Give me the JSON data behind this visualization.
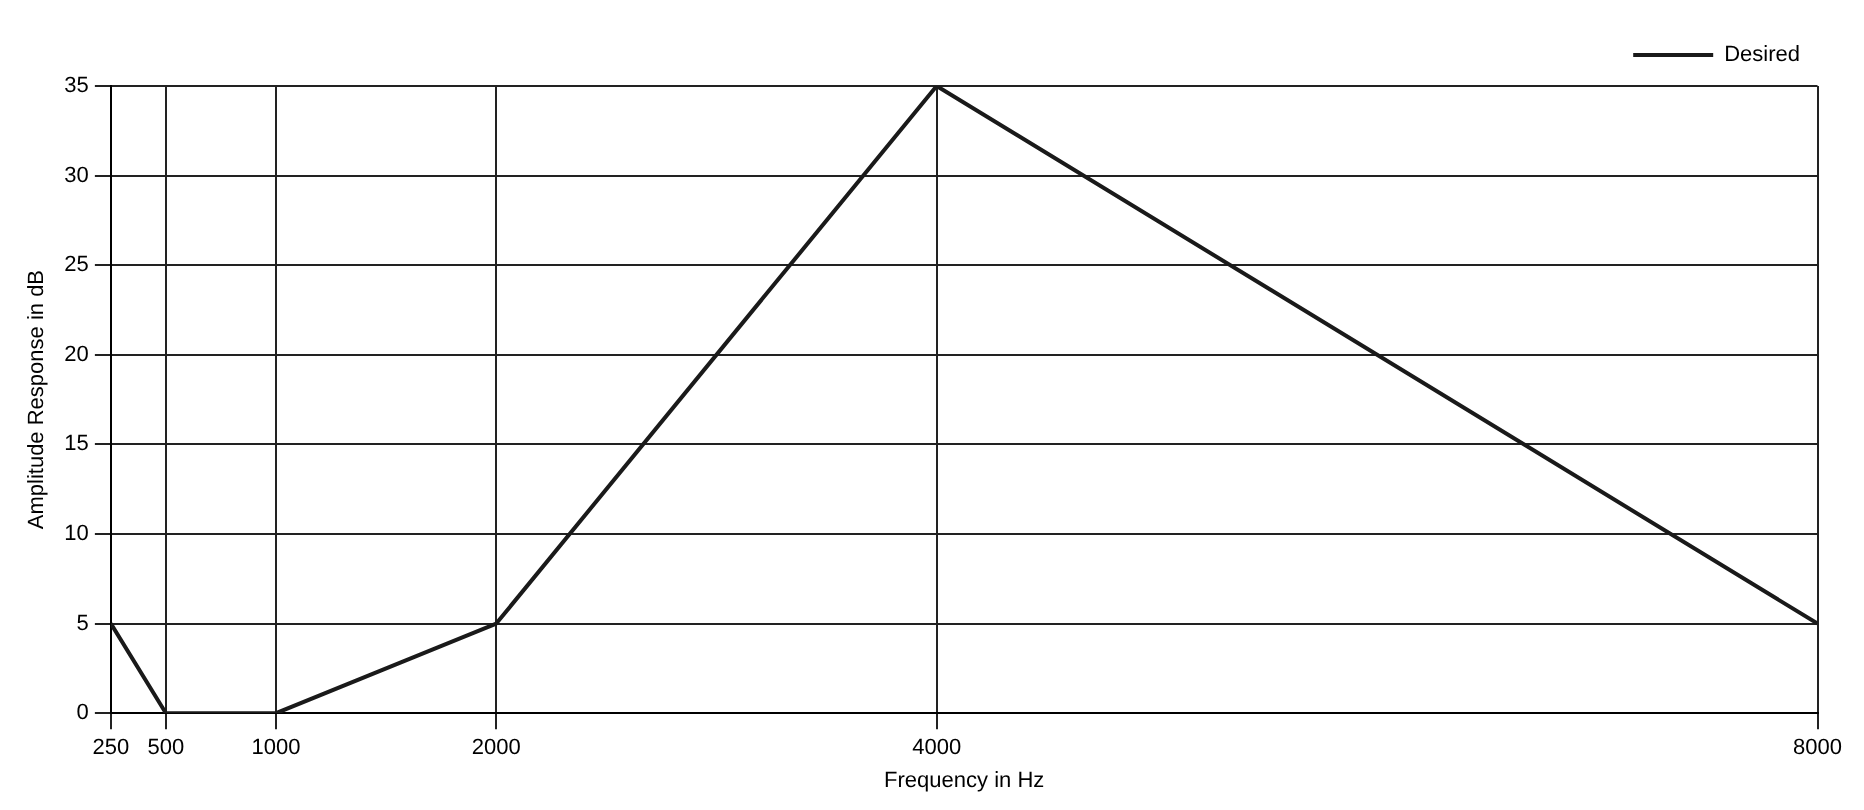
{
  "chart_data": {
    "type": "line",
    "xlabel": "Frequency in Hz",
    "ylabel": "Amplitude Response in dB",
    "x": [
      250,
      500,
      1000,
      2000,
      4000,
      8000
    ],
    "series": [
      {
        "name": "Desired",
        "color": "#1a1a1a",
        "values": [
          5,
          0,
          0,
          5,
          35,
          5
        ]
      }
    ],
    "xlim": [
      250,
      8000
    ],
    "xticks": [
      250,
      500,
      1000,
      2000,
      4000,
      8000
    ],
    "ylim": [
      0,
      35
    ],
    "yticks": [
      0,
      5,
      10,
      15,
      20,
      25,
      30,
      35
    ],
    "grid": true,
    "legend": "top right",
    "marker": "none",
    "line_style": "solid"
  }
}
